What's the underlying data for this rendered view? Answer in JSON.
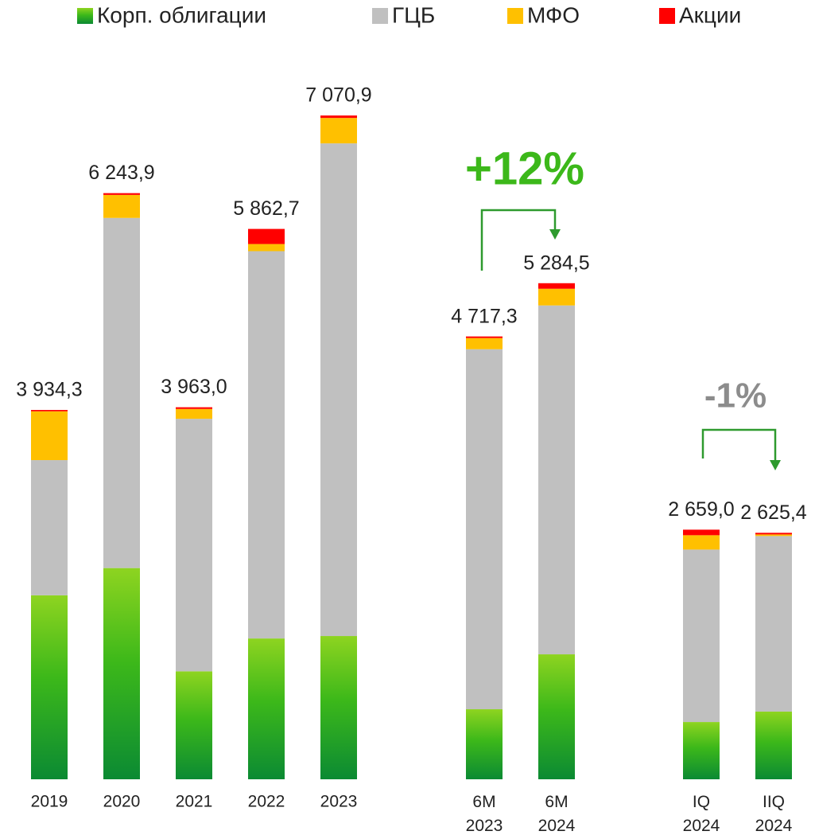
{
  "chart_data": {
    "type": "stacked_bar",
    "categories": [
      "2019",
      "2020",
      "2021",
      "2022",
      "2023",
      "6M 2023",
      "6M 2024",
      "IQ 2024",
      "IIQ 2024"
    ],
    "series": [
      {
        "name": "Корп. облигации",
        "color": "#3cb81a",
        "values": [
          1960,
          2250,
          1150,
          1500,
          1526,
          746,
          1331,
          610,
          721
        ]
      },
      {
        "name": "ГЦБ",
        "color": "#c0c0c0",
        "values": [
          1440,
          3730,
          2690,
          4126,
          5248,
          3835.3,
          3716.5,
          1837,
          1870.4
        ]
      },
      {
        "name": "МФО",
        "color": "#ffc000",
        "values": [
          520,
          245,
          105,
          76,
          271,
          119,
          178,
          153,
          17
        ]
      },
      {
        "name": "Акции",
        "color": "#ff0000",
        "values": [
          14.3,
          18.9,
          18,
          160.7,
          25.9,
          17,
          59,
          59,
          17
        ]
      }
    ],
    "totals": [
      3934.3,
      6243.9,
      3963.0,
      5862.7,
      7070.9,
      4717.3,
      5284.5,
      2659.0,
      2625.4
    ],
    "total_labels": [
      "3 934,3",
      "6 243,9",
      "3 963,0",
      "5 862,7",
      "7 070,9",
      "4 717,3",
      "5 284,5",
      "2 659,0",
      "2 625,4"
    ],
    "ylim": [
      0,
      7500
    ],
    "annotations": [
      {
        "text": "+12%",
        "color": "#3cb81a"
      },
      {
        "text": "-1%",
        "color": "#8c8c8c"
      }
    ]
  }
}
